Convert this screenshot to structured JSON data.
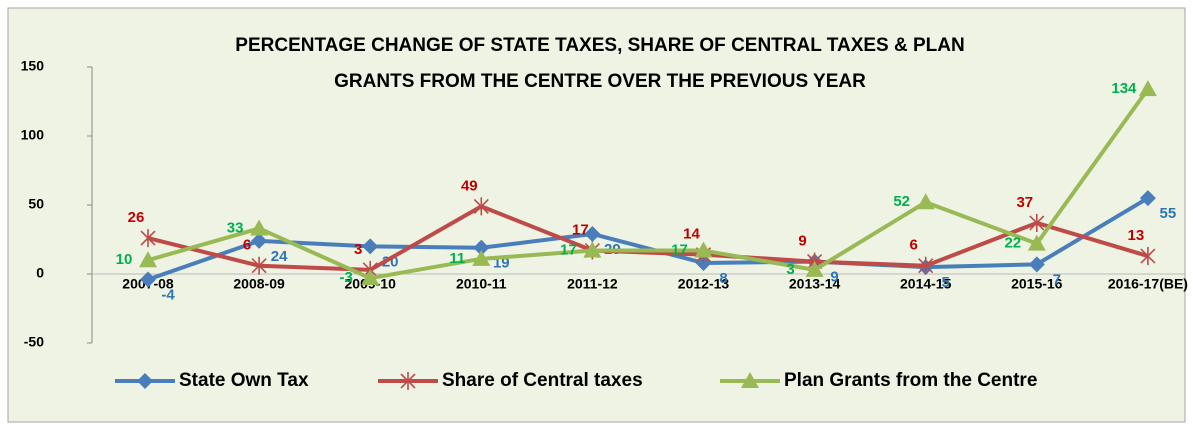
{
  "chart_data": {
    "type": "line",
    "title": [
      "PERCENTAGE CHANGE OF STATE TAXES, SHARE OF CENTRAL TAXES & PLAN",
      "GRANTS FROM THE CENTRE OVER THE PREVIOUS YEAR"
    ],
    "categories": [
      "2007-08",
      "2008-09",
      "2009-10",
      "2010-11",
      "2011-12",
      "2012-13",
      "2013-14",
      "2014-15",
      "2015-16",
      "2016-17(BE)"
    ],
    "series": [
      {
        "name": "State Own Tax",
        "color": "#4a7ebb",
        "label_color": "#2e75b6",
        "marker": "diamond",
        "values": [
          -4,
          24,
          20,
          19,
          29,
          8,
          9,
          5,
          7,
          55
        ]
      },
      {
        "name": "Share of Central taxes",
        "color": "#be4b48",
        "label_color": "#c00000",
        "marker": "star",
        "values": [
          26,
          6,
          3,
          49,
          17,
          14,
          9,
          6,
          37,
          13
        ]
      },
      {
        "name": "Plan Grants from the Centre",
        "color": "#98b954",
        "label_color": "#00b050",
        "marker": "triangle",
        "values": [
          10,
          33,
          -3,
          11,
          17,
          17,
          3,
          52,
          22,
          134
        ]
      }
    ],
    "ylim": [
      -50,
      150
    ],
    "yticks": [
      -50,
      0,
      50,
      100,
      150
    ],
    "legend": "bottom"
  }
}
